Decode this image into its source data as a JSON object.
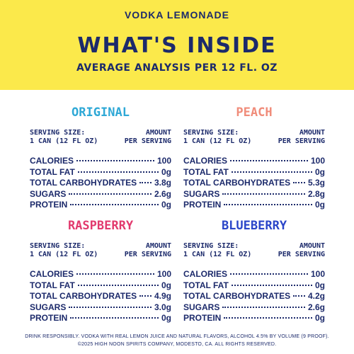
{
  "header": {
    "brand": "VODKA LEMONADE",
    "headline": "WHAT'S INSIDE",
    "subhead": "AVERAGE ANALYSIS PER 12 FL. OZ"
  },
  "colors": {
    "band": "#fbe94b",
    "navy": "#1c2a6b",
    "original": "#2ea8d6",
    "peach": "#f08c7a",
    "raspberry": "#e23a6e",
    "blueberry": "#2b46c9"
  },
  "panels": [
    {
      "name": "ORIGINAL",
      "serving_left_1": "SERVING SIZE:",
      "serving_left_2": "1 CAN (12 FL OZ)",
      "serving_right_1": "AMOUNT",
      "serving_right_2": "PER SERVING",
      "rows": [
        {
          "label": "CALORIES",
          "value": "100"
        },
        {
          "label": "TOTAL FAT",
          "value": "0g"
        },
        {
          "label": "TOTAL CARBOHYDRATES",
          "value": "3.8g"
        },
        {
          "label": "SUGARS",
          "value": "2.6g"
        },
        {
          "label": "PROTEIN",
          "value": "0g"
        }
      ]
    },
    {
      "name": "PEACH",
      "serving_left_1": "SERVING SIZE:",
      "serving_left_2": "1 CAN (12 FL OZ)",
      "serving_right_1": "AMOUNT",
      "serving_right_2": "PER SERVING",
      "rows": [
        {
          "label": "CALORIES",
          "value": "100"
        },
        {
          "label": "TOTAL FAT",
          "value": "0g"
        },
        {
          "label": "TOTAL CARBOHYDRATES",
          "value": "5.3g"
        },
        {
          "label": "SUGARS",
          "value": "2.8g"
        },
        {
          "label": "PROTEIN",
          "value": "0g"
        }
      ]
    },
    {
      "name": "RASPBERRY",
      "serving_left_1": "SERVING SIZE:",
      "serving_left_2": "1 CAN (12 FL OZ)",
      "serving_right_1": "AMOUNT",
      "serving_right_2": "PER SERVING",
      "rows": [
        {
          "label": "CALORIES",
          "value": "100"
        },
        {
          "label": "TOTAL FAT",
          "value": "0g"
        },
        {
          "label": "TOTAL CARBOHYDRATES",
          "value": "4.9g"
        },
        {
          "label": "SUGARS",
          "value": "3.0g"
        },
        {
          "label": "PROTEIN",
          "value": "0g"
        }
      ]
    },
    {
      "name": "BLUEBERRY",
      "serving_left_1": "SERVING SIZE:",
      "serving_left_2": "1 CAN (12 FL OZ)",
      "serving_right_1": "AMOUNT",
      "serving_right_2": "PER SERVING",
      "rows": [
        {
          "label": "CALORIES",
          "value": "100"
        },
        {
          "label": "TOTAL FAT",
          "value": "0g"
        },
        {
          "label": "TOTAL CARBOHYDRATES",
          "value": "4.2g"
        },
        {
          "label": "SUGARS",
          "value": "2.6g"
        },
        {
          "label": "PROTEIN",
          "value": "0g"
        }
      ]
    }
  ],
  "footer": {
    "line1": "DRINK RESPONSIBLY. VODKA WITH REAL LEMON JUICE AND NATURAL FLAVORS, ALCOHOL 4.5% BY VOLUME (9 PROOF).",
    "line2": "©2025 HIGH NOON SPIRITS COMPANY, MODESTO, CA. ALL RIGHTS RESERVED."
  }
}
